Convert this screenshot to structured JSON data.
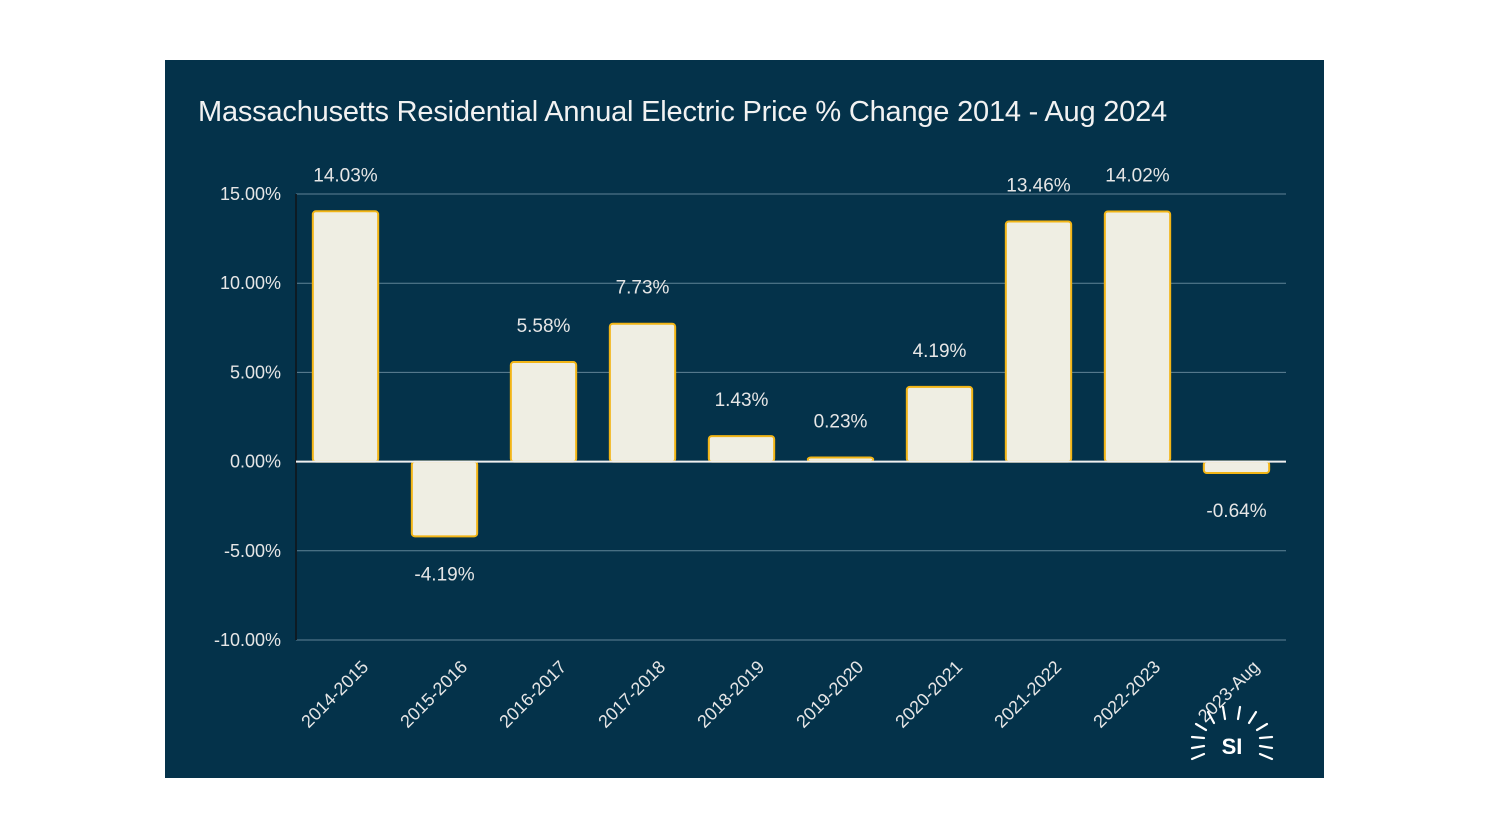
{
  "chart_data": {
    "type": "bar",
    "title": "Massachusetts Residential Annual Electric Price % Change 2014 - Aug 2024",
    "xlabel": "",
    "ylabel": "",
    "ylim": [
      -10,
      15
    ],
    "yticks": [
      15,
      10,
      5,
      0,
      -5,
      -10
    ],
    "ytick_labels": [
      "15.00%",
      "10.00%",
      "5.00%",
      "0.00%",
      "-5.00%",
      "-10.00%"
    ],
    "categories": [
      "2014-2015",
      "2015-2016",
      "2016-2017",
      "2017-2018",
      "2018-2019",
      "2019-2020",
      "2020-2021",
      "2021-2022",
      "2022-2023",
      "2023-Aug"
    ],
    "values": [
      14.03,
      -4.19,
      5.58,
      7.73,
      1.43,
      0.23,
      4.19,
      13.46,
      14.02,
      -0.64
    ],
    "value_labels": [
      "14.03%",
      "-4.19%",
      "5.58%",
      "7.73%",
      "1.43%",
      "0.23%",
      "4.19%",
      "13.46%",
      "14.02%",
      "-0.64%"
    ],
    "grid": true,
    "legend": "none",
    "colors": {
      "background": "#04324a",
      "bar_fill": "#efeee3",
      "bar_stroke": "#f2b516",
      "gridline": "#5f8396",
      "text": "#e6e6e6"
    }
  },
  "logo": {
    "text": "SI",
    "icon": "sun-burst-icon"
  }
}
